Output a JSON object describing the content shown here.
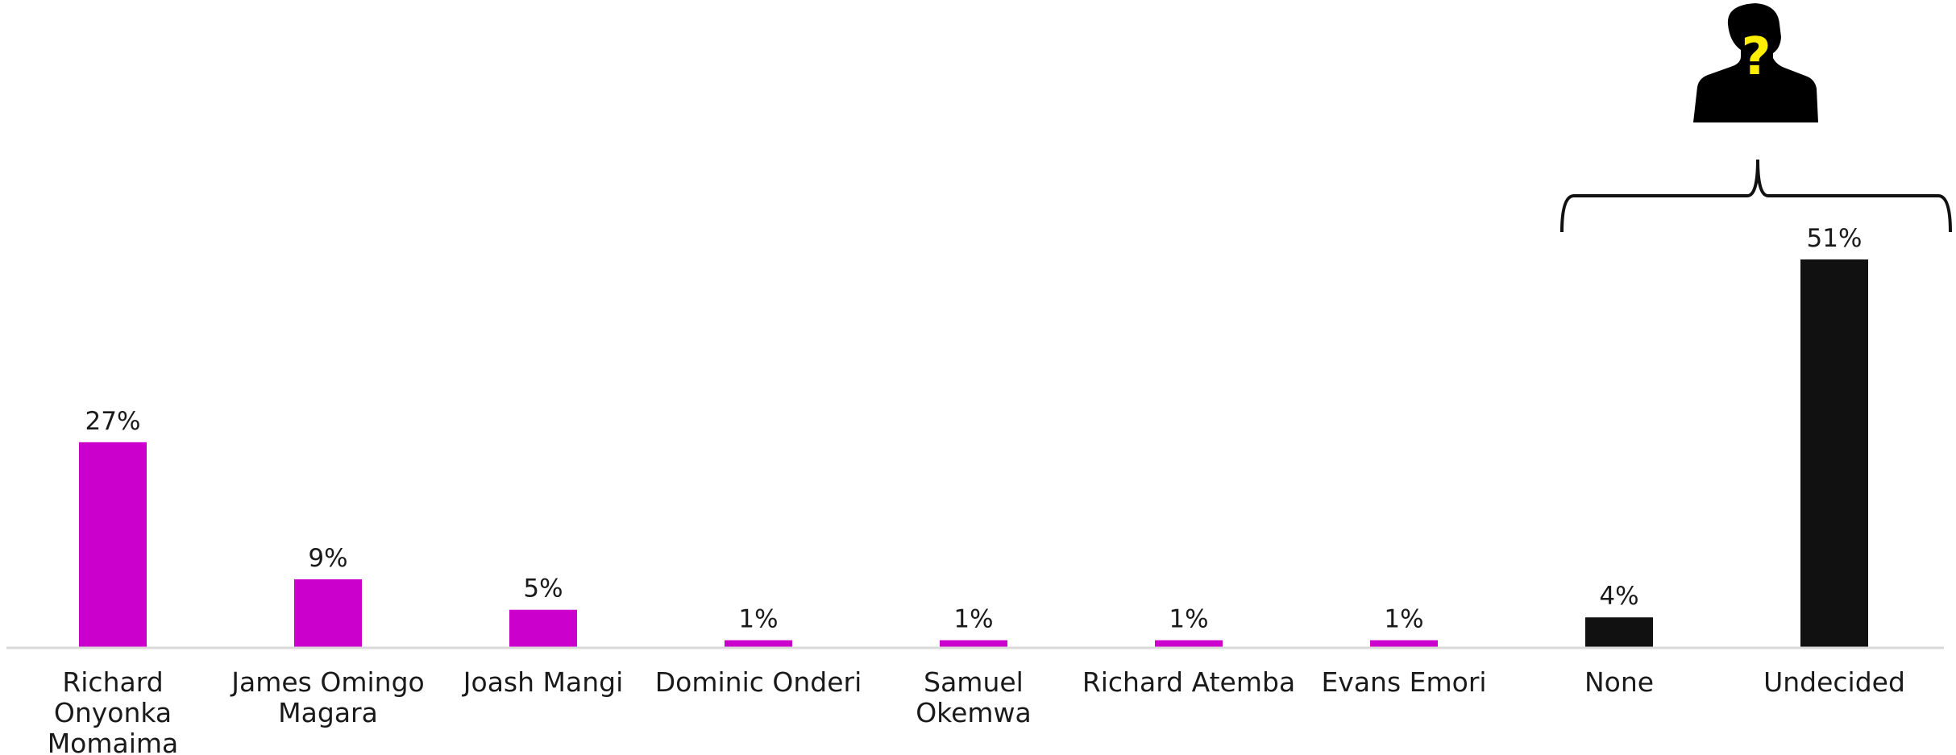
{
  "chart_data": {
    "type": "bar",
    "categories": [
      [
        "Richard",
        "Onyonka",
        "Momaima"
      ],
      [
        "James Omingo",
        "Magara"
      ],
      [
        "Joash Mangi"
      ],
      [
        "Dominic Onderi"
      ],
      [
        "Samuel",
        "Okemwa"
      ],
      [
        "Richard Atemba"
      ],
      [
        "Evans Emori"
      ],
      [
        "None"
      ],
      [
        "Undecided"
      ]
    ],
    "values": [
      27,
      9,
      5,
      1,
      1,
      1,
      1,
      4,
      51
    ],
    "value_labels": [
      "27%",
      "9%",
      "5%",
      "1%",
      "1%",
      "1%",
      "1%",
      "4%",
      "51%"
    ],
    "bar_colors": [
      "#cc00cc",
      "#cc00cc",
      "#cc00cc",
      "#cc00cc",
      "#cc00cc",
      "#cc00cc",
      "#cc00cc",
      "#111111",
      "#111111"
    ],
    "ylim": [
      0,
      51
    ],
    "grid": false,
    "legend": "none",
    "annotation": {
      "type": "bracket",
      "spans_categories": [
        "None",
        "Undecided"
      ],
      "icon": "unknown-person-question-icon",
      "icon_colors": {
        "silhouette": "#000000",
        "question_mark": "#ffee00"
      }
    },
    "axis_color": "#d9d9d9",
    "text_color": "#1a1a1a"
  }
}
